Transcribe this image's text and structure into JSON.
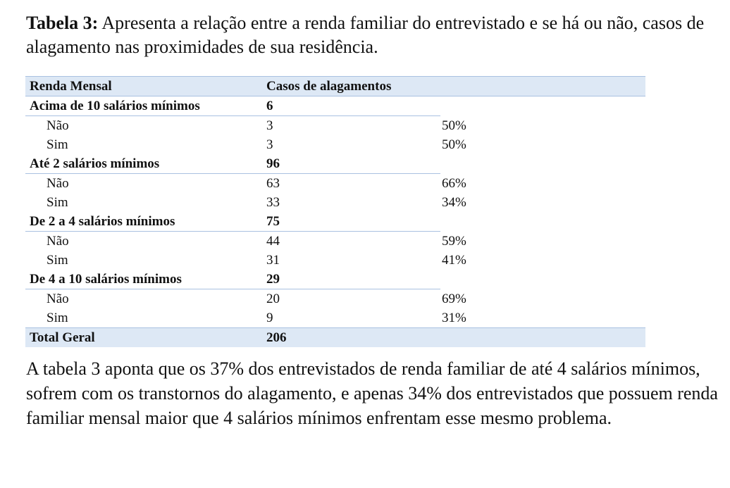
{
  "caption": {
    "label": "Tabela 3:",
    "text": " Apresenta a relação entre a renda familiar do entrevistado e se há ou não, casos de alagamento nas proximidades de sua residência."
  },
  "table": {
    "headers": {
      "col1": "Renda Mensal",
      "col2": "Casos de alagamentos",
      "col3": ""
    },
    "groups": [
      {
        "label": "Acima de 10 salários mínimos",
        "total": "6",
        "rows": [
          {
            "label": "Não",
            "count": "3",
            "pct": "50%"
          },
          {
            "label": "Sim",
            "count": "3",
            "pct": "50%"
          }
        ]
      },
      {
        "label": "Até 2 salários mínimos",
        "total": "96",
        "rows": [
          {
            "label": "Não",
            "count": "63",
            "pct": "66%"
          },
          {
            "label": "Sim",
            "count": "33",
            "pct": "34%"
          }
        ]
      },
      {
        "label": "De 2 a 4 salários mínimos",
        "total": "75",
        "rows": [
          {
            "label": "Não",
            "count": "44",
            "pct": "59%"
          },
          {
            "label": "Sim",
            "count": "31",
            "pct": "41%"
          }
        ]
      },
      {
        "label": "De 4 a 10 salários mínimos",
        "total": "29",
        "rows": [
          {
            "label": "Não",
            "count": "20",
            "pct": "69%"
          },
          {
            "label": "Sim",
            "count": "9",
            "pct": "31%"
          }
        ]
      }
    ],
    "total": {
      "label": "Total Geral",
      "value": "206"
    }
  },
  "summary": "A tabela 3 aponta que os 37% dos entrevistados de renda familiar de até 4 salários mínimos, sofrem com os transtornos do alagamento, e apenas 34% dos entrevistados que possuem renda familiar mensal maior que 4 salários mínimos enfrentam esse mesmo problema.",
  "colors": {
    "header_fill": "#dde8f5",
    "rule": "#a9c1e1",
    "text": "#111111"
  }
}
